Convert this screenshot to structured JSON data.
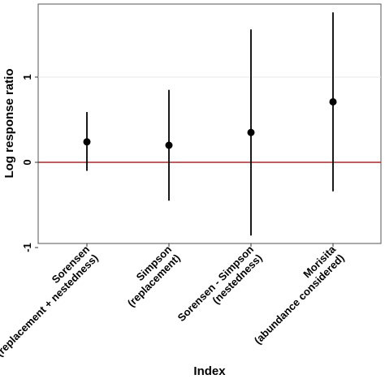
{
  "chart_data": {
    "type": "scatter",
    "subtype": "point-with-interval",
    "xlabel": "Index",
    "ylabel": "Log response ratio",
    "ylim": [
      -1,
      1.8
    ],
    "yticks": [
      -1,
      0,
      1
    ],
    "ytick_labels": [
      "-1",
      "0",
      "1"
    ],
    "categories": [
      [
        "Sorensen",
        "(replacement + nestedness)"
      ],
      [
        "Simpson",
        "(replacement)"
      ],
      [
        "Sorensen - Simpson",
        "(nestedness)"
      ],
      [
        "Morisita",
        "(abundance considered)"
      ]
    ],
    "points": [
      {
        "estimate": 0.24,
        "lower": -0.1,
        "upper": 0.59
      },
      {
        "estimate": 0.2,
        "lower": -0.45,
        "upper": 0.85
      },
      {
        "estimate": 0.35,
        "lower": -0.86,
        "upper": 1.56
      },
      {
        "estimate": 0.71,
        "lower": -0.34,
        "upper": 1.76
      }
    ],
    "reference_line": {
      "y": 0,
      "color": "#a52a2a"
    },
    "gridline": {
      "y": 1
    },
    "grid": false,
    "colors": {
      "points": "#000000",
      "reference": "#a52a2a",
      "frame": "#555555"
    }
  }
}
